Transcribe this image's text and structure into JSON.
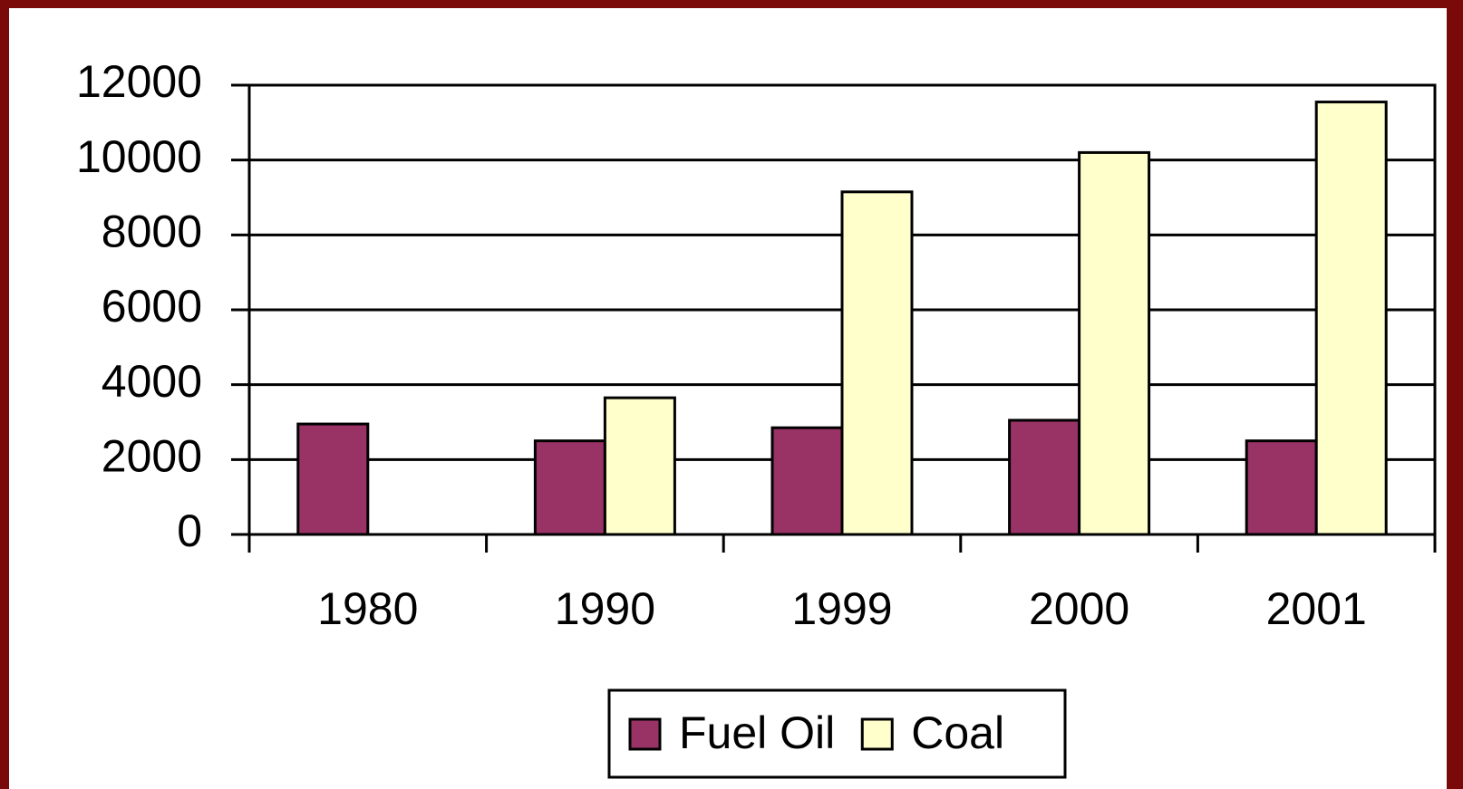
{
  "chart_data": {
    "type": "bar",
    "categories": [
      "1980",
      "1990",
      "1999",
      "2000",
      "2001"
    ],
    "series": [
      {
        "name": "Fuel Oil",
        "color": "#993366",
        "values": [
          2950,
          2500,
          2850,
          3050,
          2500
        ]
      },
      {
        "name": "Coal",
        "color": "#ffffcc",
        "values": [
          null,
          3650,
          9150,
          10200,
          11550
        ]
      }
    ],
    "ylim": [
      0,
      12000
    ],
    "yticks": [
      0,
      2000,
      4000,
      6000,
      8000,
      10000,
      12000
    ],
    "grid": true,
    "legend": "bottom"
  }
}
